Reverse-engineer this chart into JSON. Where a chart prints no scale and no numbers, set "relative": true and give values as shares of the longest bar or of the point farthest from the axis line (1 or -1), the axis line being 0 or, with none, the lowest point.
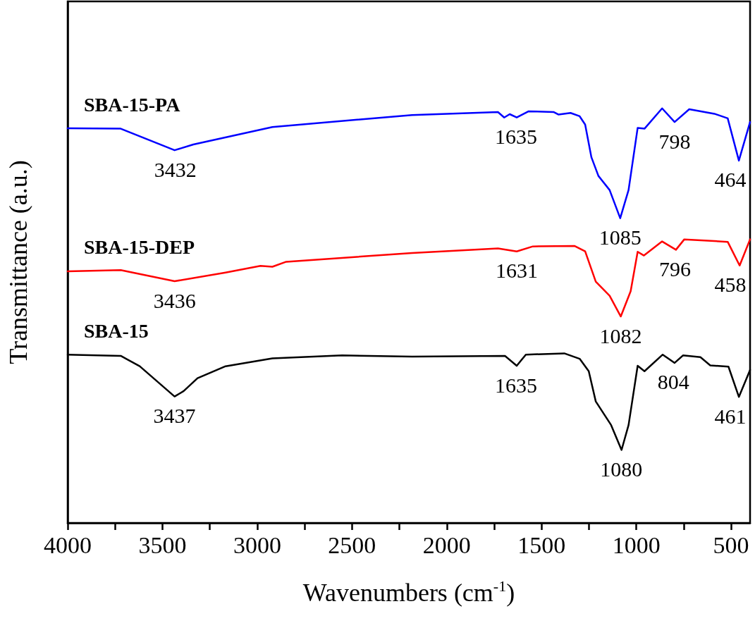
{
  "chart_data": {
    "type": "line",
    "relative": true,
    "xlabel": "Wavenumbers (cm$^{-1}$)",
    "ylabel": "Transmittance (a.u.)",
    "xlim": [
      4000,
      400
    ],
    "xticks": [
      4000,
      {
        "value": 3750,
        "label": null
      },
      3500,
      {
        "value": 3250,
        "label": null
      },
      3000,
      {
        "value": 2750,
        "label": null
      },
      2500,
      {
        "value": 2250,
        "label": null
      },
      2000,
      {
        "value": 1750,
        "label": null
      },
      1500,
      {
        "value": 1250,
        "label": null
      },
      1000,
      {
        "value": 750,
        "label": null
      },
      500
    ],
    "grid": false,
    "legend": false,
    "marker": "none",
    "line_style": "solid",
    "series": [
      {
        "name": "SBA-15-PA",
        "color": "#0000ff",
        "x": [
          4000,
          3720,
          3436,
          3337,
          2920,
          2183,
          1730,
          1697,
          1668,
          1631,
          1568,
          1435,
          1410,
          1347,
          1299,
          1270,
          1237,
          1200,
          1141,
          1085,
          1041,
          993,
          957,
          864,
          798,
          721,
          588,
          518,
          459,
          400
        ],
        "values": [
          0.952,
          0.951,
          0.899,
          0.913,
          0.955,
          0.984,
          0.991,
          0.978,
          0.986,
          0.978,
          0.993,
          0.991,
          0.985,
          0.989,
          0.981,
          0.961,
          0.882,
          0.837,
          0.803,
          0.735,
          0.803,
          0.953,
          0.951,
          1.0,
          0.967,
          0.998,
          0.987,
          0.976,
          0.874,
          0.967
        ]
      },
      {
        "name": "SBA-15-DEP",
        "color": "#ff0000",
        "x": [
          4000,
          3720,
          3436,
          3167,
          2983,
          2920,
          2847,
          2183,
          1730,
          1631,
          1546,
          1325,
          1270,
          1214,
          1141,
          1082,
          1030,
          993,
          960,
          864,
          791,
          747,
          518,
          455,
          400
        ],
        "values": [
          0.607,
          0.61,
          0.583,
          0.604,
          0.62,
          0.618,
          0.63,
          0.651,
          0.662,
          0.655,
          0.667,
          0.668,
          0.655,
          0.582,
          0.548,
          0.498,
          0.559,
          0.654,
          0.645,
          0.679,
          0.659,
          0.684,
          0.678,
          0.621,
          0.684
        ]
      },
      {
        "name": "SBA-15",
        "color": "#000000",
        "x": [
          4000,
          3720,
          3620,
          3436,
          3388,
          3315,
          3167,
          2920,
          2552,
          2183,
          1693,
          1631,
          1583,
          1380,
          1299,
          1251,
          1214,
          1133,
          1078,
          1041,
          993,
          957,
          861,
          798,
          754,
          662,
          610,
          514,
          459,
          400
        ],
        "values": [
          0.406,
          0.403,
          0.378,
          0.305,
          0.318,
          0.349,
          0.378,
          0.397,
          0.404,
          0.401,
          0.403,
          0.379,
          0.406,
          0.409,
          0.396,
          0.366,
          0.293,
          0.236,
          0.176,
          0.236,
          0.379,
          0.366,
          0.406,
          0.386,
          0.404,
          0.4,
          0.38,
          0.377,
          0.304,
          0.369
        ]
      }
    ],
    "annotations": [
      {
        "text": "3432",
        "x": 3432,
        "y": 0.899
      },
      {
        "text": "1635",
        "x": 1635,
        "y": 0.978
      },
      {
        "text": "1085",
        "x": 1085,
        "y": 0.735
      },
      {
        "text": "798",
        "x": 798,
        "y": 0.967
      },
      {
        "text": "464",
        "x": 464,
        "y": 0.874
      },
      {
        "text": "3436",
        "x": 3436,
        "y": 0.583
      },
      {
        "text": "1631",
        "x": 1631,
        "y": 0.655
      },
      {
        "text": "1082",
        "x": 1082,
        "y": 0.498
      },
      {
        "text": "796",
        "x": 796,
        "y": 0.659
      },
      {
        "text": "458",
        "x": 458,
        "y": 0.621
      },
      {
        "text": "3437",
        "x": 3437,
        "y": 0.305
      },
      {
        "text": "1635",
        "x": 1635,
        "y": 0.379
      },
      {
        "text": "1080",
        "x": 1080,
        "y": 0.176
      },
      {
        "text": "804",
        "x": 804,
        "y": 0.386
      },
      {
        "text": "461",
        "x": 461,
        "y": 0.304
      }
    ]
  }
}
